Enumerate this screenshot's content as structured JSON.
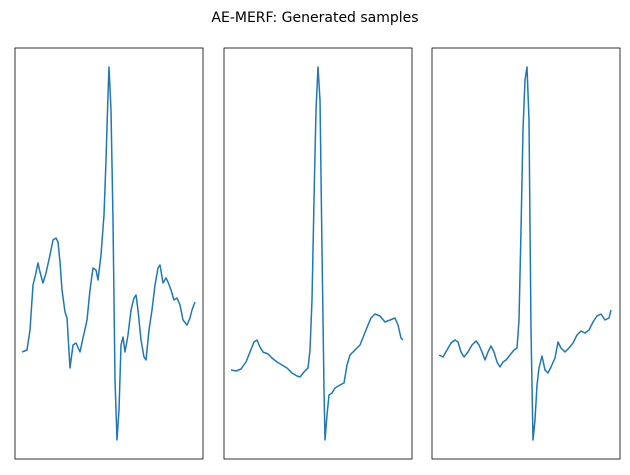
{
  "title": "AE-MERF: Generated samples",
  "chart_data": [
    {
      "type": "line",
      "color": "#1f77b4",
      "xlim": [
        -7,
        181
      ],
      "ylim": [
        0,
        411
      ],
      "x": [
        0,
        5,
        8,
        11,
        13,
        16,
        18,
        21,
        24,
        28,
        31,
        34,
        36,
        38,
        40,
        43,
        45,
        48,
        51,
        54,
        58,
        61,
        65,
        68,
        71,
        74,
        76,
        79,
        82,
        84,
        86,
        87,
        89,
        91,
        93,
        95,
        97,
        99,
        101,
        103,
        106,
        109,
        112,
        114,
        116,
        119,
        122,
        124,
        127,
        130,
        133,
        136,
        138,
        141,
        144,
        146,
        149,
        152,
        155,
        158,
        161,
        165,
        168,
        170,
        173
      ],
      "values": [
        107,
        109,
        129,
        174,
        182,
        196,
        187,
        176,
        186,
        204,
        219,
        221,
        217,
        197,
        169,
        147,
        141,
        91,
        114,
        116,
        107,
        121,
        139,
        169,
        191,
        189,
        179,
        204,
        244,
        299,
        364,
        392,
        349,
        239,
        79,
        19,
        49,
        114,
        122,
        107,
        124,
        149,
        161,
        164,
        149,
        119,
        102,
        99,
        129,
        149,
        174,
        191,
        194,
        176,
        181,
        177,
        169,
        159,
        161,
        154,
        139,
        134,
        141,
        149,
        157
      ]
    },
    {
      "type": "line",
      "color": "#1f77b4",
      "xlim": [
        -7,
        181
      ],
      "ylim": [
        0,
        411
      ],
      "x": [
        0,
        5,
        10,
        15,
        19,
        23,
        26,
        29,
        32,
        37,
        41,
        46,
        51,
        56,
        61,
        66,
        69,
        73,
        77,
        79,
        81,
        83,
        85,
        87,
        89,
        91,
        93,
        94,
        96,
        98,
        101,
        104,
        109,
        113,
        116,
        119,
        124,
        129,
        133,
        137,
        140,
        144,
        149,
        154,
        159,
        164,
        167,
        170,
        172
      ],
      "values": [
        89,
        88,
        90,
        97,
        107,
        117,
        119,
        112,
        107,
        105,
        101,
        97,
        94,
        91,
        86,
        83,
        82,
        87,
        91,
        109,
        159,
        259,
        349,
        392,
        359,
        209,
        69,
        19,
        44,
        64,
        66,
        71,
        74,
        76,
        94,
        104,
        109,
        114,
        124,
        134,
        141,
        145,
        143,
        137,
        139,
        141,
        134,
        121,
        119
      ]
    },
    {
      "type": "line",
      "color": "#1f77b4",
      "xlim": [
        -7,
        181
      ],
      "ylim": [
        0,
        411
      ],
      "x": [
        0,
        4,
        8,
        12,
        16,
        19,
        22,
        25,
        29,
        33,
        37,
        40,
        43,
        46,
        49,
        52,
        55,
        58,
        61,
        64,
        67,
        71,
        75,
        78,
        80,
        82,
        84,
        86,
        88,
        90,
        92,
        94,
        96,
        98,
        100,
        103,
        106,
        109,
        112,
        116,
        119,
        122,
        126,
        130,
        134,
        138,
        142,
        146,
        150,
        154,
        158,
        162,
        166,
        170,
        172
      ],
      "values": [
        104,
        102,
        109,
        116,
        119,
        117,
        107,
        102,
        107,
        114,
        118,
        114,
        107,
        99,
        107,
        113,
        107,
        97,
        92,
        97,
        99,
        104,
        109,
        111,
        139,
        229,
        329,
        379,
        392,
        339,
        129,
        19,
        39,
        74,
        91,
        103,
        89,
        86,
        92,
        101,
        117,
        111,
        107,
        111,
        116,
        124,
        128,
        126,
        129,
        137,
        143,
        145,
        139,
        141,
        149
      ]
    }
  ]
}
